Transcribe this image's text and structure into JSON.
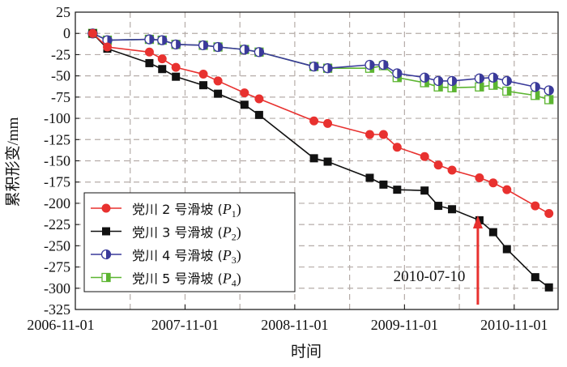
{
  "chart_data": {
    "type": "line",
    "title": "",
    "xlabel": "时间",
    "ylabel": "累积形变/mm",
    "x_unit": "months since 2006-11-01",
    "xlim": [
      0,
      52.8
    ],
    "ylim": [
      -325,
      25
    ],
    "grid": true,
    "legend_position": "bottom-left",
    "x_ticks": [
      {
        "value": 0,
        "label": "2006-11-01"
      },
      {
        "value": 12,
        "label": "2007-11-01"
      },
      {
        "value": 24,
        "label": "2008-11-01"
      },
      {
        "value": 36,
        "label": "2009-11-01"
      },
      {
        "value": 48,
        "label": "2010-11-01"
      }
    ],
    "y_ticks": [
      25,
      0,
      -25,
      -50,
      -75,
      -100,
      -125,
      -150,
      -175,
      -200,
      -225,
      -250,
      -275,
      -300,
      -325
    ],
    "x": [
      1.9,
      3.5,
      8.1,
      9.5,
      11.0,
      14.0,
      15.6,
      18.5,
      20.1,
      26.1,
      27.6,
      32.2,
      33.7,
      35.2,
      38.2,
      39.7,
      41.2,
      44.2,
      45.7,
      47.2,
      50.3,
      51.8
    ],
    "series": [
      {
        "name": "党川 2 号滑坡",
        "sub_label": "P",
        "sub_index": "1",
        "color": "#e8312f",
        "marker": "circle",
        "values": [
          0,
          -16,
          -22,
          -30,
          -40,
          -48,
          -56,
          -70,
          -77,
          -103,
          -106,
          -119,
          -119,
          -134,
          -145,
          -155,
          -161,
          -170,
          -176,
          -184,
          -203,
          -212
        ]
      },
      {
        "name": "党川 3 号滑坡",
        "sub_label": "P",
        "sub_index": "2",
        "color": "#111111",
        "marker": "square",
        "values": [
          0,
          -18,
          -35,
          -42,
          -51,
          -61,
          -71,
          -84,
          -96,
          -147,
          -151,
          -170,
          -178,
          -184,
          -185,
          -203,
          -207,
          -220,
          -234,
          -254,
          -287,
          -299
        ]
      },
      {
        "name": "党川 4 号滑坡",
        "sub_label": "P",
        "sub_index": "3",
        "color": "#3a3a9a",
        "marker": "half-circle",
        "values": [
          0,
          -8,
          -7,
          -8,
          -13,
          -14,
          -16,
          -19,
          -22,
          -39,
          -41,
          -37,
          -37,
          -47,
          -52,
          -56,
          -56,
          -53,
          -52,
          -56,
          -63,
          -67
        ]
      },
      {
        "name": "党川 5 号滑坡",
        "sub_label": "P",
        "sub_index": "4",
        "color": "#5cb531",
        "marker": "half-square",
        "values": [
          0,
          -8,
          -7,
          -8,
          -13,
          -14,
          -16,
          -19,
          -22,
          -39,
          -41,
          -41,
          -38,
          -52,
          -58,
          -63,
          -64,
          -63,
          -61,
          -68,
          -73,
          -78
        ]
      }
    ],
    "annotation": {
      "text": "2010-07-10",
      "x": 44.2,
      "color": "#e8312f"
    }
  }
}
